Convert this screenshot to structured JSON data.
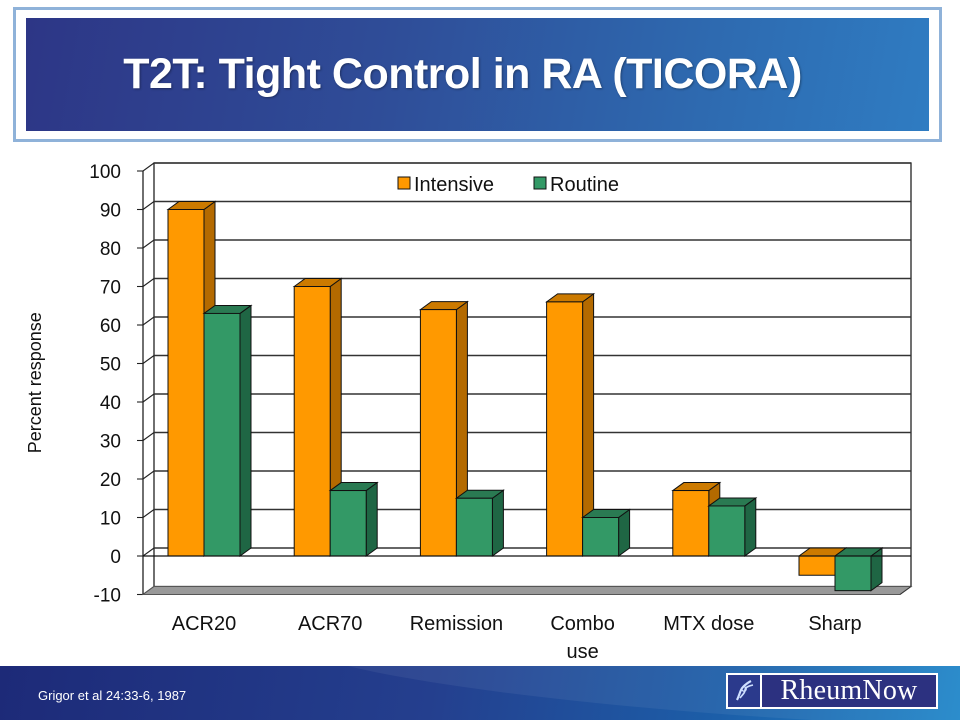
{
  "slide": {
    "title": "T2T: Tight Control in RA (TICORA)",
    "citation": "Grigor et al 24:33-6, 1987",
    "logo_text": "RheumNow",
    "logo_icon": "joint-icon"
  },
  "colors": {
    "intensive_front": "#ff9900",
    "intensive_side": "#b46a00",
    "intensive_top": "#cc7a00",
    "routine_front": "#339966",
    "routine_side": "#1f6644",
    "routine_top": "#2a7a52",
    "floor": "#999999",
    "title_banner": "#2f4d98",
    "footer": "#243f8e"
  },
  "chart_data": {
    "type": "bar",
    "style": "3d-clustered-column",
    "title": "",
    "xlabel": "",
    "ylabel": "Percent response",
    "ylim": [
      -10,
      100
    ],
    "yticks": [
      100,
      90,
      80,
      70,
      60,
      50,
      40,
      30,
      20,
      10,
      0,
      -10
    ],
    "grid": true,
    "legend_position": "top-center-inside",
    "categories": [
      "ACR20",
      "ACR70",
      "Remission",
      "Combo use",
      "MTX dose",
      "Sharp"
    ],
    "category_lines": [
      [
        "ACR20"
      ],
      [
        "ACR70"
      ],
      [
        "Remission"
      ],
      [
        "Combo",
        "use"
      ],
      [
        "MTX dose"
      ],
      [
        "Sharp"
      ]
    ],
    "series": [
      {
        "name": "Intensive",
        "values": [
          90,
          70,
          64,
          66,
          17,
          -5
        ]
      },
      {
        "name": "Routine",
        "values": [
          63,
          17,
          15,
          10,
          13,
          -9
        ]
      }
    ]
  }
}
